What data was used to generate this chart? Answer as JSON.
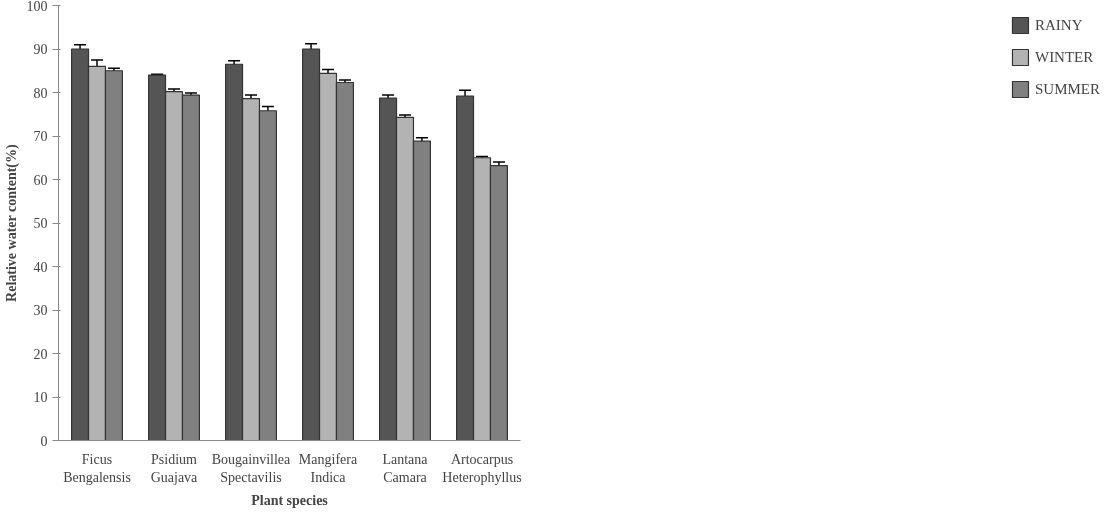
{
  "chart_data": {
    "type": "bar",
    "xlabel": "Plant species",
    "ylabel": "Relative water content(%)",
    "categories": [
      "Ficus\nBengalensis",
      "Psidium\nGuajava",
      "Bougainvillea\nSpectavilis",
      "Mangifera\nIndica",
      "Lantana\nCamara",
      "Artocarpus\nHeterophyllus"
    ],
    "series": [
      {
        "name": "RAINY",
        "color": "#555555",
        "values": [
          90,
          84,
          86.5,
          90,
          78.7,
          79.2
        ],
        "errors": [
          1,
          0.2,
          0.8,
          1.2,
          0.7,
          1.3
        ]
      },
      {
        "name": "WINTER",
        "color": "#b3b3b3",
        "values": [
          86,
          80.2,
          78.6,
          84.4,
          74.3,
          65
        ],
        "errors": [
          1.5,
          0.6,
          0.8,
          0.9,
          0.5,
          0.3
        ]
      },
      {
        "name": "SUMMER",
        "color": "#808080",
        "values": [
          85,
          79.4,
          75.8,
          82.3,
          68.8,
          63.2
        ],
        "errors": [
          0.6,
          0.5,
          1,
          0.6,
          0.8,
          0.8
        ]
      }
    ],
    "ylim": [
      0,
      100
    ],
    "yticks": [
      0,
      10,
      20,
      30,
      40,
      50,
      60,
      70,
      80,
      90,
      100
    ],
    "grid": false,
    "legend": "right"
  }
}
